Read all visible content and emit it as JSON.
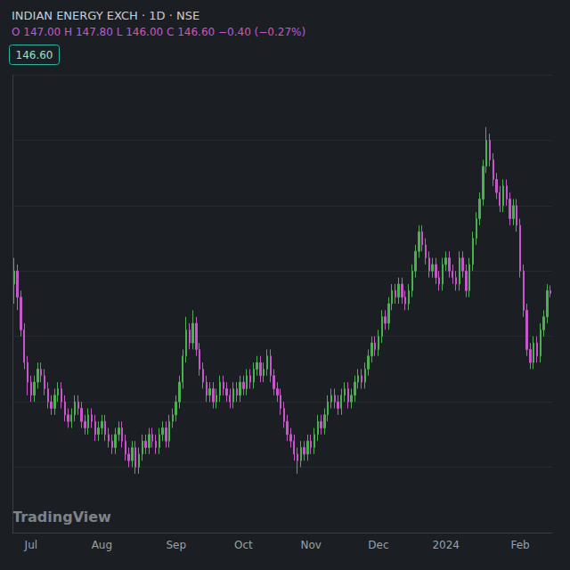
{
  "chart_data": {
    "type": "candlestick",
    "title": "INDIAN ENERGY EXCH · 1D · NSE",
    "subtitle": "O 147.00 H 147.80 L 146.00 C 146.60 −0.40 (−0.27%)",
    "annotations": [
      "146.60",
      "TradingView"
    ],
    "categories": [
      null,
      null,
      null,
      null,
      null,
      "Jul",
      null,
      null,
      null,
      null,
      null,
      null,
      null,
      null,
      null,
      null,
      null,
      null,
      null,
      null,
      null,
      null,
      null,
      null,
      null,
      null,
      "Aug",
      null,
      null,
      null,
      null,
      null,
      null,
      null,
      null,
      null,
      null,
      null,
      null,
      null,
      null,
      null,
      null,
      null,
      null,
      null,
      null,
      null,
      "Sep",
      null,
      null,
      null,
      null,
      null,
      null,
      null,
      null,
      null,
      null,
      null,
      null,
      null,
      null,
      null,
      null,
      null,
      null,
      null,
      "Oct",
      null,
      null,
      null,
      null,
      null,
      null,
      null,
      null,
      null,
      null,
      null,
      null,
      null,
      null,
      null,
      null,
      null,
      null,
      null,
      "Nov",
      null,
      null,
      null,
      null,
      null,
      null,
      null,
      null,
      null,
      null,
      null,
      null,
      null,
      null,
      null,
      null,
      null,
      null,
      null,
      "Dec",
      null,
      null,
      null,
      null,
      null,
      null,
      null,
      null,
      null,
      null,
      null,
      null,
      null,
      null,
      null,
      null,
      null,
      null,
      null,
      "2024",
      null,
      null,
      null,
      null,
      null,
      null,
      null,
      null,
      null,
      null,
      null,
      null,
      null,
      null,
      null,
      null,
      null,
      null,
      null,
      null,
      null,
      "Feb",
      null,
      null,
      null,
      null,
      null,
      null,
      null,
      null,
      null
    ],
    "series": [
      {
        "name": "INDIAN ENERGY EXCH",
        "color": "#c557c8",
        "values": [
          [
            148,
            152,
            145,
            150
          ],
          [
            150,
            151,
            144,
            146
          ],
          [
            146,
            147,
            140,
            141
          ],
          [
            141,
            142,
            135,
            136
          ],
          [
            136,
            137,
            131,
            133
          ],
          [
            133,
            134,
            130,
            131
          ],
          [
            131,
            134,
            130,
            133
          ],
          [
            133,
            136,
            132,
            135
          ],
          [
            135,
            136,
            133,
            134
          ],
          [
            134,
            135,
            131,
            132
          ],
          [
            132,
            133,
            129,
            130
          ],
          [
            130,
            131,
            128,
            129
          ],
          [
            129,
            132,
            128,
            131
          ],
          [
            131,
            133,
            130,
            132
          ],
          [
            132,
            133,
            129,
            130
          ],
          [
            130,
            131,
            127,
            128
          ],
          [
            128,
            129,
            126,
            127
          ],
          [
            127,
            129,
            126,
            128
          ],
          [
            128,
            131,
            127,
            130
          ],
          [
            130,
            131,
            128,
            129
          ],
          [
            129,
            130,
            126,
            127
          ],
          [
            127,
            128,
            125,
            126
          ],
          [
            126,
            129,
            125,
            128
          ],
          [
            128,
            129,
            126,
            127
          ],
          [
            127,
            128,
            124,
            125
          ],
          [
            125,
            127,
            124,
            126
          ],
          [
            126,
            128,
            125,
            127
          ],
          [
            127,
            128,
            124,
            125
          ],
          [
            125,
            126,
            123,
            124
          ],
          [
            124,
            125,
            122,
            123
          ],
          [
            123,
            126,
            122,
            125
          ],
          [
            125,
            127,
            124,
            126
          ],
          [
            126,
            127,
            123,
            124
          ],
          [
            124,
            125,
            121,
            122
          ],
          [
            122,
            123,
            120,
            121
          ],
          [
            121,
            124,
            120,
            123
          ],
          [
            123,
            124,
            119,
            120
          ],
          [
            120,
            123,
            119,
            122
          ],
          [
            122,
            125,
            121,
            124
          ],
          [
            124,
            125,
            122,
            123
          ],
          [
            123,
            126,
            122,
            125
          ],
          [
            125,
            126,
            123,
            124
          ],
          [
            124,
            125,
            122,
            123
          ],
          [
            123,
            126,
            122,
            125
          ],
          [
            125,
            127,
            124,
            126
          ],
          [
            126,
            127,
            123,
            124
          ],
          [
            124,
            128,
            123,
            127
          ],
          [
            127,
            129,
            126,
            128
          ],
          [
            128,
            131,
            127,
            130
          ],
          [
            130,
            134,
            129,
            133
          ],
          [
            133,
            138,
            132,
            137
          ],
          [
            137,
            143,
            136,
            141
          ],
          [
            141,
            142,
            138,
            139
          ],
          [
            139,
            144,
            138,
            142
          ],
          [
            142,
            143,
            137,
            138
          ],
          [
            138,
            139,
            134,
            135
          ],
          [
            135,
            136,
            132,
            133
          ],
          [
            133,
            134,
            130,
            131
          ],
          [
            131,
            133,
            130,
            132
          ],
          [
            132,
            133,
            129,
            130
          ],
          [
            130,
            132,
            129,
            131
          ],
          [
            131,
            134,
            130,
            133
          ],
          [
            133,
            134,
            131,
            132
          ],
          [
            132,
            133,
            130,
            131
          ],
          [
            131,
            132,
            129,
            130
          ],
          [
            130,
            133,
            129,
            132
          ],
          [
            132,
            133,
            130,
            131
          ],
          [
            131,
            134,
            130,
            133
          ],
          [
            133,
            134,
            131,
            132
          ],
          [
            132,
            135,
            131,
            134
          ],
          [
            134,
            135,
            132,
            133
          ],
          [
            133,
            136,
            132,
            135
          ],
          [
            135,
            137,
            134,
            136
          ],
          [
            136,
            137,
            133,
            134
          ],
          [
            134,
            136,
            133,
            135
          ],
          [
            135,
            138,
            134,
            137
          ],
          [
            137,
            138,
            133,
            134
          ],
          [
            134,
            135,
            131,
            132
          ],
          [
            132,
            133,
            130,
            131
          ],
          [
            131,
            132,
            128,
            129
          ],
          [
            129,
            130,
            126,
            127
          ],
          [
            127,
            128,
            124,
            125
          ],
          [
            125,
            126,
            123,
            124
          ],
          [
            124,
            125,
            121,
            122
          ],
          [
            122,
            123,
            119,
            121
          ],
          [
            121,
            124,
            120,
            123
          ],
          [
            123,
            124,
            121,
            122
          ],
          [
            122,
            125,
            121,
            124
          ],
          [
            124,
            125,
            122,
            123
          ],
          [
            123,
            126,
            122,
            125
          ],
          [
            125,
            128,
            124,
            127
          ],
          [
            127,
            128,
            125,
            126
          ],
          [
            126,
            129,
            125,
            128
          ],
          [
            128,
            131,
            127,
            130
          ],
          [
            130,
            132,
            129,
            131
          ],
          [
            131,
            132,
            129,
            130
          ],
          [
            130,
            131,
            128,
            129
          ],
          [
            129,
            132,
            128,
            131
          ],
          [
            131,
            133,
            130,
            132
          ],
          [
            132,
            133,
            129,
            130
          ],
          [
            130,
            132,
            129,
            131
          ],
          [
            131,
            134,
            130,
            133
          ],
          [
            133,
            135,
            132,
            134
          ],
          [
            134,
            135,
            132,
            133
          ],
          [
            133,
            136,
            132,
            135
          ],
          [
            135,
            138,
            134,
            137
          ],
          [
            137,
            140,
            136,
            139
          ],
          [
            139,
            140,
            137,
            138
          ],
          [
            138,
            141,
            137,
            140
          ],
          [
            140,
            144,
            139,
            143
          ],
          [
            143,
            144,
            141,
            142
          ],
          [
            142,
            146,
            141,
            145
          ],
          [
            145,
            148,
            144,
            147
          ],
          [
            147,
            148,
            145,
            146
          ],
          [
            146,
            149,
            145,
            148
          ],
          [
            148,
            149,
            145,
            146
          ],
          [
            146,
            147,
            144,
            145
          ],
          [
            145,
            148,
            144,
            147
          ],
          [
            147,
            151,
            146,
            150
          ],
          [
            150,
            154,
            149,
            153
          ],
          [
            153,
            157,
            152,
            156
          ],
          [
            156,
            157,
            153,
            154
          ],
          [
            154,
            155,
            151,
            152
          ],
          [
            152,
            153,
            149,
            150
          ],
          [
            150,
            152,
            149,
            151
          ],
          [
            151,
            152,
            148,
            149
          ],
          [
            149,
            150,
            147,
            148
          ],
          [
            148,
            152,
            147,
            151
          ],
          [
            151,
            153,
            150,
            152
          ],
          [
            152,
            153,
            149,
            150
          ],
          [
            150,
            151,
            148,
            149
          ],
          [
            149,
            150,
            147,
            148
          ],
          [
            148,
            153,
            147,
            152
          ],
          [
            152,
            153,
            149,
            150
          ],
          [
            150,
            151,
            146,
            147
          ],
          [
            147,
            152,
            146,
            151
          ],
          [
            151,
            156,
            150,
            155
          ],
          [
            155,
            159,
            154,
            158
          ],
          [
            158,
            162,
            157,
            161
          ],
          [
            161,
            167,
            160,
            166
          ],
          [
            166,
            172,
            165,
            170
          ],
          [
            170,
            171,
            166,
            167
          ],
          [
            167,
            168,
            163,
            164
          ],
          [
            164,
            165,
            161,
            162
          ],
          [
            162,
            163,
            159,
            160
          ],
          [
            160,
            164,
            159,
            163
          ],
          [
            163,
            164,
            160,
            161
          ],
          [
            161,
            162,
            157,
            158
          ],
          [
            158,
            161,
            157,
            160
          ],
          [
            160,
            161,
            156,
            157
          ],
          [
            157,
            158,
            149,
            150
          ],
          [
            150,
            151,
            143,
            144
          ],
          [
            144,
            145,
            137,
            138
          ],
          [
            138,
            139,
            135,
            136
          ],
          [
            136,
            140,
            135,
            139
          ],
          [
            139,
            140,
            136,
            137
          ],
          [
            137,
            142,
            136,
            141
          ],
          [
            141,
            144,
            140,
            143
          ],
          [
            143,
            148,
            142,
            147
          ],
          [
            147,
            147.8,
            146,
            146.6
          ]
        ]
      }
    ],
    "ylim": [
      110,
      180
    ],
    "yticks": [
      110,
      120,
      130,
      140,
      150,
      160,
      170,
      180
    ],
    "grid": true,
    "tick_labels": "x"
  }
}
